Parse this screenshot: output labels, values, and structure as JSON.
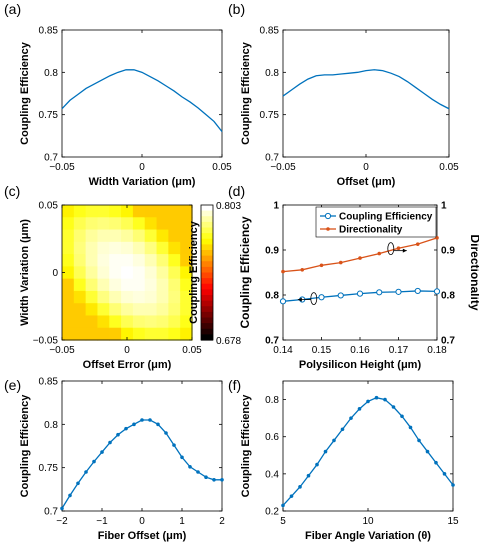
{
  "colors": {
    "blue": "#0072BD",
    "orange": "#D95319",
    "axis": "#000000"
  },
  "chart_data": [
    {
      "id": "a",
      "panel_label": "(a)",
      "type": "line",
      "xlabel": "Width Variation (μm)",
      "ylabel": "Coupling Efficiency",
      "xlim": [
        -0.05,
        0.05
      ],
      "ylim": [
        0.7,
        0.85
      ],
      "xticks": [
        -0.05,
        0,
        0.05
      ],
      "xtick_labels": [
        "−0.05",
        "0",
        "0.05"
      ],
      "yticks": [
        0.7,
        0.75,
        0.8,
        0.85
      ],
      "ytick_labels": [
        "0.7",
        "0.75",
        "0.8",
        "0.85"
      ],
      "marker": "none",
      "series": [
        {
          "color": "#0072BD",
          "x": [
            -0.05,
            -0.045,
            -0.04,
            -0.035,
            -0.03,
            -0.025,
            -0.02,
            -0.015,
            -0.01,
            -0.005,
            0,
            0.005,
            0.01,
            0.015,
            0.02,
            0.025,
            0.03,
            0.035,
            0.04,
            0.045,
            0.05
          ],
          "y": [
            0.757,
            0.767,
            0.774,
            0.781,
            0.786,
            0.791,
            0.796,
            0.8,
            0.803,
            0.803,
            0.8,
            0.795,
            0.79,
            0.784,
            0.778,
            0.771,
            0.765,
            0.758,
            0.75,
            0.742,
            0.73
          ]
        }
      ]
    },
    {
      "id": "b",
      "panel_label": "(b)",
      "type": "line",
      "xlabel": "Offset (μm)",
      "ylabel": "Coupling Efficiency",
      "xlim": [
        -0.05,
        0.05
      ],
      "ylim": [
        0.7,
        0.85
      ],
      "xticks": [
        -0.05,
        0,
        0.05
      ],
      "xtick_labels": [
        "−0.05",
        "0",
        "0.05"
      ],
      "yticks": [
        0.7,
        0.75,
        0.8,
        0.85
      ],
      "ytick_labels": [
        "0.7",
        "0.75",
        "0.8",
        "0.85"
      ],
      "marker": "none",
      "series": [
        {
          "color": "#0072BD",
          "x": [
            -0.05,
            -0.045,
            -0.04,
            -0.035,
            -0.03,
            -0.025,
            -0.02,
            -0.015,
            -0.01,
            -0.005,
            0,
            0.005,
            0.01,
            0.015,
            0.02,
            0.025,
            0.03,
            0.035,
            0.04,
            0.045,
            0.05
          ],
          "y": [
            0.772,
            0.779,
            0.786,
            0.792,
            0.796,
            0.797,
            0.797,
            0.798,
            0.799,
            0.8,
            0.802,
            0.803,
            0.802,
            0.799,
            0.795,
            0.789,
            0.782,
            0.775,
            0.768,
            0.762,
            0.757
          ]
        }
      ]
    },
    {
      "id": "c",
      "panel_label": "(c)",
      "type": "heatmap",
      "xlabel": "Offset Error (μm)",
      "ylabel": "Width Variation (μm)",
      "xlim": [
        -0.05,
        0.05
      ],
      "ylim": [
        -0.05,
        0.05
      ],
      "xticks": [
        -0.05,
        0,
        0.05
      ],
      "xtick_labels": [
        "−0.05",
        "0",
        "0.05"
      ],
      "yticks": [
        -0.05,
        0,
        0.05
      ],
      "ytick_labels": [
        "−0.05",
        "0",
        "0.05"
      ],
      "colorbar_label": "Coupling Efficiency",
      "colorbar_range": [
        0.678,
        0.803
      ],
      "colorbar_tick_labels": [
        "0.678",
        "0.803"
      ],
      "colormap": "hot",
      "peak": {
        "x": 0.0,
        "y": 0.0,
        "value": 0.803
      },
      "grid_size": 11
    },
    {
      "id": "d",
      "panel_label": "(d)",
      "type": "line",
      "xlabel": "Polysilicon Height (μm)",
      "ylabel": "Coupling Efficiency",
      "ylabel_right": "Directionality",
      "xlim": [
        0.14,
        0.18
      ],
      "ylim": [
        0.7,
        1.0
      ],
      "ylim_right": [
        0.7,
        1.0
      ],
      "xticks": [
        0.14,
        0.15,
        0.16,
        0.17,
        0.18
      ],
      "xtick_labels": [
        "0.14",
        "0.15",
        "0.16",
        "0.17",
        "0.18"
      ],
      "yticks": [
        0.7,
        0.8,
        0.9,
        1.0
      ],
      "ytick_labels": [
        "0.7",
        "0.8",
        "0.9",
        "1"
      ],
      "legend_position": "top-right",
      "series": [
        {
          "name": "Coupling Efficiency",
          "axis": "left",
          "color": "#0072BD",
          "marker": "open-circle",
          "x": [
            0.14,
            0.145,
            0.15,
            0.155,
            0.16,
            0.165,
            0.17,
            0.175,
            0.18
          ],
          "y": [
            0.786,
            0.79,
            0.795,
            0.799,
            0.803,
            0.806,
            0.807,
            0.809,
            0.808
          ]
        },
        {
          "name": "Directionality",
          "axis": "right",
          "color": "#D95319",
          "marker": "filled-dot",
          "x": [
            0.14,
            0.145,
            0.15,
            0.155,
            0.16,
            0.165,
            0.17,
            0.175,
            0.18
          ],
          "y": [
            0.852,
            0.856,
            0.866,
            0.872,
            0.882,
            0.892,
            0.904,
            0.913,
            0.927
          ]
        }
      ]
    },
    {
      "id": "e",
      "panel_label": "(e)",
      "type": "line",
      "xlabel": "Fiber Offset (μm)",
      "ylabel": "Coupling Efficiency",
      "xlim": [
        -2,
        2
      ],
      "ylim": [
        0.7,
        0.85
      ],
      "xticks": [
        -2,
        -1,
        0,
        1,
        2
      ],
      "xtick_labels": [
        "−2",
        "−1",
        "0",
        "1",
        "2"
      ],
      "yticks": [
        0.7,
        0.75,
        0.8,
        0.85
      ],
      "ytick_labels": [
        "0.7",
        "0.75",
        "0.8",
        "0.85"
      ],
      "marker": "filled-dot",
      "series": [
        {
          "color": "#0072BD",
          "x": [
            -2,
            -1.8,
            -1.6,
            -1.4,
            -1.2,
            -1,
            -0.8,
            -0.6,
            -0.4,
            -0.2,
            0,
            0.2,
            0.4,
            0.6,
            0.8,
            1,
            1.2,
            1.4,
            1.6,
            1.8,
            2
          ],
          "y": [
            0.703,
            0.718,
            0.732,
            0.745,
            0.757,
            0.768,
            0.779,
            0.788,
            0.795,
            0.8,
            0.805,
            0.805,
            0.8,
            0.79,
            0.776,
            0.762,
            0.751,
            0.745,
            0.739,
            0.736,
            0.736
          ]
        }
      ]
    },
    {
      "id": "f",
      "panel_label": "(f)",
      "type": "line",
      "xlabel": "Fiber Angle Variation (θ)",
      "ylabel": "Coupling Efficiency",
      "xlim": [
        5,
        15
      ],
      "ylim": [
        0.2,
        0.9
      ],
      "xticks": [
        5,
        10,
        15
      ],
      "xtick_labels": [
        "5",
        "10",
        "15"
      ],
      "yticks": [
        0.2,
        0.4,
        0.6,
        0.8
      ],
      "ytick_labels": [
        "0.2",
        "0.4",
        "0.6",
        "0.8"
      ],
      "marker": "filled-dot",
      "series": [
        {
          "color": "#0072BD",
          "x": [
            5,
            5.5,
            6,
            6.5,
            7,
            7.5,
            8,
            8.5,
            9,
            9.5,
            10,
            10.5,
            11,
            11.5,
            12,
            12.5,
            13,
            13.5,
            14,
            14.5,
            15
          ],
          "y": [
            0.23,
            0.28,
            0.33,
            0.39,
            0.45,
            0.52,
            0.58,
            0.64,
            0.7,
            0.75,
            0.79,
            0.81,
            0.8,
            0.76,
            0.71,
            0.65,
            0.58,
            0.52,
            0.46,
            0.4,
            0.34
          ]
        }
      ]
    }
  ]
}
